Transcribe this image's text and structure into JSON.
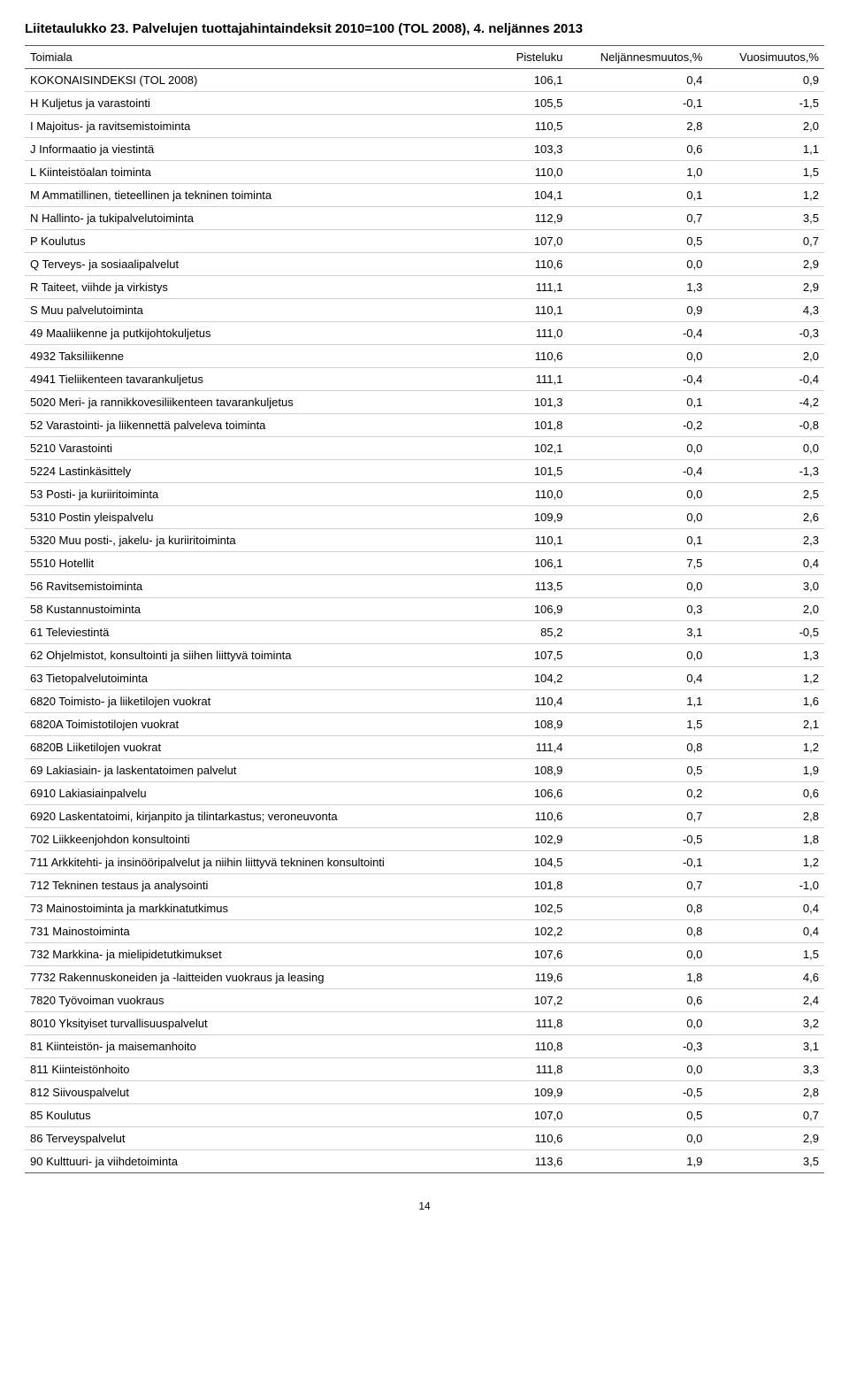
{
  "title": "Liitetaulukko 23. Palvelujen tuottajahintaindeksit 2010=100 (TOL 2008), 4. neljännes 2013",
  "columns": [
    "Toimiala",
    "Pisteluku",
    "Neljännesmuutos,%",
    "Vuosimuutos,%"
  ],
  "page_number": "14",
  "rows": [
    {
      "label": "KOKONAISINDEKSI (TOL 2008)",
      "v": [
        "106,1",
        "0,4",
        "0,9"
      ]
    },
    {
      "label": "H Kuljetus ja varastointi",
      "v": [
        "105,5",
        "-0,1",
        "-1,5"
      ]
    },
    {
      "label": "I Majoitus- ja ravitsemistoiminta",
      "v": [
        "110,5",
        "2,8",
        "2,0"
      ]
    },
    {
      "label": "J Informaatio ja viestintä",
      "v": [
        "103,3",
        "0,6",
        "1,1"
      ]
    },
    {
      "label": "L Kiinteistöalan toiminta",
      "v": [
        "110,0",
        "1,0",
        "1,5"
      ]
    },
    {
      "label": "M Ammatillinen, tieteellinen ja tekninen toiminta",
      "v": [
        "104,1",
        "0,1",
        "1,2"
      ]
    },
    {
      "label": "N Hallinto- ja tukipalvelutoiminta",
      "v": [
        "112,9",
        "0,7",
        "3,5"
      ]
    },
    {
      "label": "P Koulutus",
      "v": [
        "107,0",
        "0,5",
        "0,7"
      ]
    },
    {
      "label": "Q Terveys- ja sosiaalipalvelut",
      "v": [
        "110,6",
        "0,0",
        "2,9"
      ]
    },
    {
      "label": "R Taiteet, viihde ja virkistys",
      "v": [
        "111,1",
        "1,3",
        "2,9"
      ]
    },
    {
      "label": "S Muu palvelutoiminta",
      "v": [
        "110,1",
        "0,9",
        "4,3"
      ]
    },
    {
      "label": "49 Maaliikenne ja putkijohtokuljetus",
      "v": [
        "111,0",
        "-0,4",
        "-0,3"
      ]
    },
    {
      "label": "4932 Taksiliikenne",
      "v": [
        "110,6",
        "0,0",
        "2,0"
      ]
    },
    {
      "label": "4941 Tieliikenteen tavarankuljetus",
      "v": [
        "111,1",
        "-0,4",
        "-0,4"
      ]
    },
    {
      "label": "5020 Meri- ja rannikkovesiliikenteen tavarankuljetus",
      "v": [
        "101,3",
        "0,1",
        "-4,2"
      ]
    },
    {
      "label": "52 Varastointi- ja liikennettä palveleva toiminta",
      "v": [
        "101,8",
        "-0,2",
        "-0,8"
      ]
    },
    {
      "label": "5210 Varastointi",
      "v": [
        "102,1",
        "0,0",
        "0,0"
      ]
    },
    {
      "label": "5224 Lastinkäsittely",
      "v": [
        "101,5",
        "-0,4",
        "-1,3"
      ]
    },
    {
      "label": "53 Posti- ja kuriiritoiminta",
      "v": [
        "110,0",
        "0,0",
        "2,5"
      ]
    },
    {
      "label": "5310 Postin yleispalvelu",
      "v": [
        "109,9",
        "0,0",
        "2,6"
      ]
    },
    {
      "label": "5320 Muu posti-, jakelu- ja kuriiritoiminta",
      "v": [
        "110,1",
        "0,1",
        "2,3"
      ]
    },
    {
      "label": "5510 Hotellit",
      "v": [
        "106,1",
        "7,5",
        "0,4"
      ]
    },
    {
      "label": "56 Ravitsemistoiminta",
      "v": [
        "113,5",
        "0,0",
        "3,0"
      ]
    },
    {
      "label": "58 Kustannustoiminta",
      "v": [
        "106,9",
        "0,3",
        "2,0"
      ]
    },
    {
      "label": "61 Televiestintä",
      "v": [
        "85,2",
        "3,1",
        "-0,5"
      ]
    },
    {
      "label": "62 Ohjelmistot, konsultointi ja siihen liittyvä toiminta",
      "v": [
        "107,5",
        "0,0",
        "1,3"
      ]
    },
    {
      "label": "63 Tietopalvelutoiminta",
      "v": [
        "104,2",
        "0,4",
        "1,2"
      ]
    },
    {
      "label": "6820 Toimisto- ja liiketilojen vuokrat",
      "v": [
        "110,4",
        "1,1",
        "1,6"
      ]
    },
    {
      "label": "6820A Toimistotilojen vuokrat",
      "v": [
        "108,9",
        "1,5",
        "2,1"
      ]
    },
    {
      "label": "6820B Liiketilojen vuokrat",
      "v": [
        "111,4",
        "0,8",
        "1,2"
      ]
    },
    {
      "label": "69 Lakiasiain- ja laskentatoimen palvelut",
      "v": [
        "108,9",
        "0,5",
        "1,9"
      ]
    },
    {
      "label": "6910 Lakiasiainpalvelu",
      "v": [
        "106,6",
        "0,2",
        "0,6"
      ]
    },
    {
      "label": "6920 Laskentatoimi, kirjanpito ja tilintarkastus; veroneuvonta",
      "v": [
        "110,6",
        "0,7",
        "2,8"
      ]
    },
    {
      "label": "702 Liikkeenjohdon konsultointi",
      "v": [
        "102,9",
        "-0,5",
        "1,8"
      ]
    },
    {
      "label": "711 Arkkitehti- ja insinööripalvelut ja niihin liittyvä tekninen konsultointi",
      "v": [
        "104,5",
        "-0,1",
        "1,2"
      ]
    },
    {
      "label": "712 Tekninen testaus ja analysointi",
      "v": [
        "101,8",
        "0,7",
        "-1,0"
      ]
    },
    {
      "label": "73 Mainostoiminta ja markkinatutkimus",
      "v": [
        "102,5",
        "0,8",
        "0,4"
      ]
    },
    {
      "label": "731 Mainostoiminta",
      "v": [
        "102,2",
        "0,8",
        "0,4"
      ]
    },
    {
      "label": "732 Markkina- ja mielipidetutkimukset",
      "v": [
        "107,6",
        "0,0",
        "1,5"
      ]
    },
    {
      "label": "7732 Rakennuskoneiden ja -laitteiden vuokraus ja leasing",
      "v": [
        "119,6",
        "1,8",
        "4,6"
      ]
    },
    {
      "label": "7820 Työvoiman vuokraus",
      "v": [
        "107,2",
        "0,6",
        "2,4"
      ]
    },
    {
      "label": "8010 Yksityiset turvallisuuspalvelut",
      "v": [
        "111,8",
        "0,0",
        "3,2"
      ]
    },
    {
      "label": "81 Kiinteistön- ja maisemanhoito",
      "v": [
        "110,8",
        "-0,3",
        "3,1"
      ]
    },
    {
      "label": "811 Kiinteistönhoito",
      "v": [
        "111,8",
        "0,0",
        "3,3"
      ]
    },
    {
      "label": "812 Siivouspalvelut",
      "v": [
        "109,9",
        "-0,5",
        "2,8"
      ]
    },
    {
      "label": "85 Koulutus",
      "v": [
        "107,0",
        "0,5",
        "0,7"
      ]
    },
    {
      "label": "86 Terveyspalvelut",
      "v": [
        "110,6",
        "0,0",
        "2,9"
      ]
    },
    {
      "label": "90 Kulttuuri- ja viihdetoiminta",
      "v": [
        "113,6",
        "1,9",
        "3,5"
      ]
    }
  ]
}
